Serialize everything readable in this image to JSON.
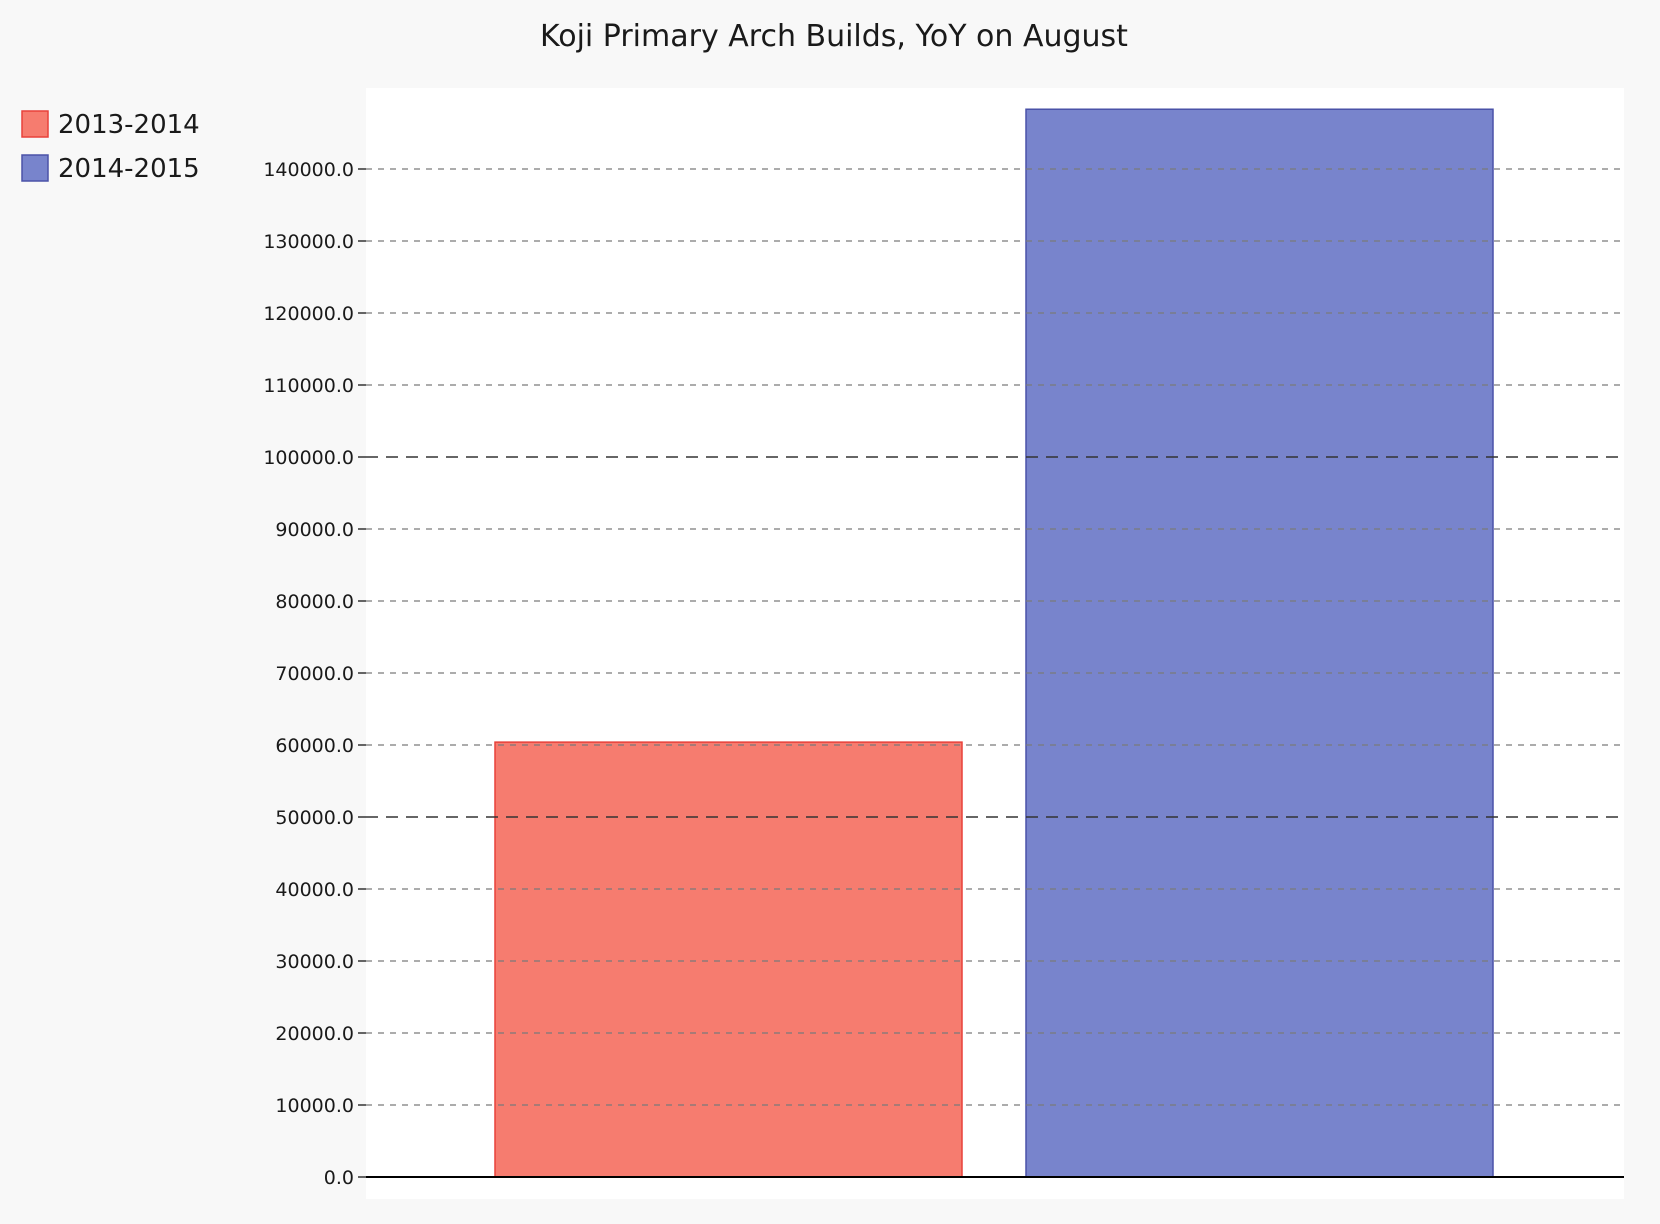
{
  "chart_data": {
    "type": "bar",
    "title": "Koji Primary Arch Builds, YoY on August",
    "xlabel": "",
    "ylabel": "",
    "ylim": [
      0,
      150000
    ],
    "yticks": [
      0,
      10000,
      20000,
      30000,
      40000,
      50000,
      60000,
      70000,
      80000,
      90000,
      100000,
      110000,
      120000,
      130000,
      140000
    ],
    "ytick_labels": [
      "0.0",
      "10000.0",
      "20000.0",
      "30000.0",
      "40000.0",
      "50000.0",
      "60000.0",
      "70000.0",
      "80000.0",
      "90000.0",
      "100000.0",
      "110000.0",
      "120000.0",
      "130000.0",
      "140000.0"
    ],
    "major_gridlines": [
      50000,
      100000
    ],
    "grid": true,
    "legend_position": "top-left",
    "series": [
      {
        "name": "2013-2014",
        "value": 60400,
        "fill": "#f67c6f",
        "stroke": "#e8413a"
      },
      {
        "name": "2014-2015",
        "value": 148300,
        "fill": "#7884cc",
        "stroke": "#4a52a8"
      }
    ]
  }
}
